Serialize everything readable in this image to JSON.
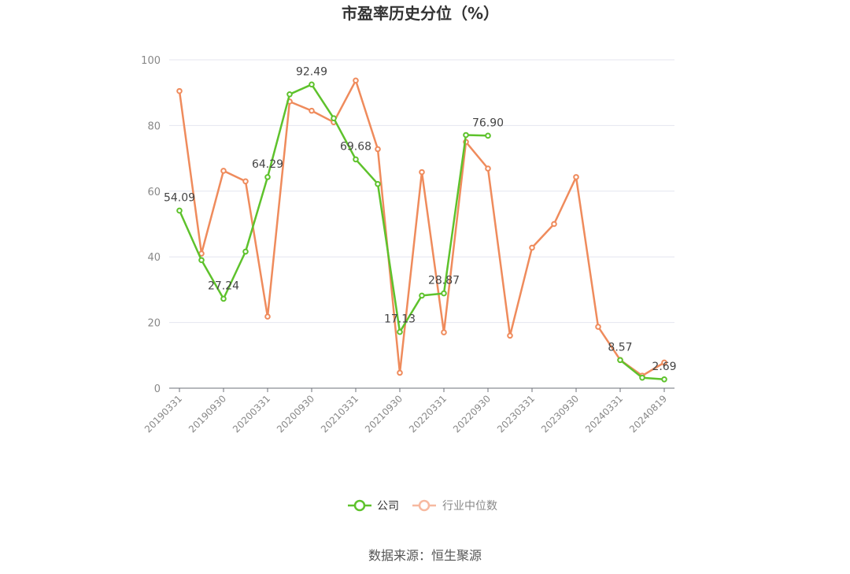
{
  "chart_data": {
    "type": "line",
    "title": "市盈率历史分位（%）",
    "source": "数据来源：恒生聚源",
    "ylim": [
      0,
      100
    ],
    "yticks": [
      0,
      20,
      40,
      60,
      80,
      100
    ],
    "grid": true,
    "legend_position": "bottom",
    "x": [
      "20190331",
      "20190630",
      "20190930",
      "20191231",
      "20200331",
      "20200630",
      "20200930",
      "20201231",
      "20210331",
      "20210630",
      "20210930",
      "20211231",
      "20220331",
      "20220630",
      "20220930",
      "20221231",
      "20230331",
      "20230630",
      "20230930",
      "20231231",
      "20240331",
      "20240630",
      "20240819"
    ],
    "xtick_labels": [
      "20190331",
      "20190930",
      "20200331",
      "20200930",
      "20210331",
      "20210930",
      "20220331",
      "20220930",
      "20230331",
      "20230930",
      "20240331",
      "20240819"
    ],
    "series": [
      {
        "name": "公司",
        "color": "#5ec22c",
        "values": [
          54.09,
          39.0,
          27.24,
          41.6,
          64.29,
          89.5,
          92.49,
          82.2,
          69.68,
          62.2,
          17.13,
          28.2,
          28.87,
          77.1,
          76.9,
          null,
          null,
          null,
          null,
          null,
          8.57,
          3.2,
          2.69
        ],
        "labels": {
          "0": "54.09",
          "2": "27.24",
          "4": "64.29",
          "6": "92.49",
          "8": "69.68",
          "10": "17.13",
          "12": "28.87",
          "14": "76.90",
          "20": "8.57",
          "22": "2.69"
        }
      },
      {
        "name": "行业中位数",
        "color": "#ef8b5c",
        "values": [
          90.5,
          41.0,
          66.2,
          63.0,
          21.8,
          87.3,
          84.5,
          81.0,
          93.7,
          72.8,
          4.7,
          65.8,
          17.0,
          75.0,
          66.9,
          16.0,
          42.8,
          50.0,
          64.3,
          18.7,
          8.6,
          3.8,
          7.8
        ]
      }
    ]
  }
}
